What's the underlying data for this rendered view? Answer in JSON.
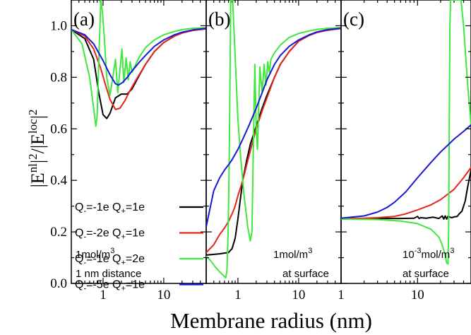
{
  "colors": {
    "black": "#000000",
    "red": "#e8231b",
    "green": "#3ee83c",
    "blue": "#1818d8"
  },
  "chart_data": {
    "type": "line",
    "y_title": "|E<sup>nl</sup>|<sup>2</sup>/|E<sup>loc</sup>|<sup>2</sup>",
    "y_title_parts": {
      "a": "|E",
      "sup1": "nl",
      "b": "|",
      "sup2": "2",
      "c": "/|E",
      "sup3": "loc",
      "d": "|",
      "sup4": "2"
    },
    "x_title": "Membrane radius (nm)",
    "ylim": [
      0.0,
      1.1
    ],
    "yticks": [
      "0.0",
      "0.2",
      "0.4",
      "0.6",
      "0.8",
      "1.0"
    ],
    "xscale": "log",
    "legend": {
      "placement": "panel (a), lower-left",
      "entries": [
        {
          "qm": "-1e",
          "qp": "1e",
          "color": "black"
        },
        {
          "qm": "-2e",
          "qp": "1e",
          "color": "red"
        },
        {
          "qm": "-1e",
          "qp": "2e",
          "color": "green"
        },
        {
          "qm": "-5e",
          "qp": "1e",
          "color": "blue"
        }
      ]
    },
    "panels": [
      {
        "label": "(a)",
        "xlim": [
          0.3,
          50
        ],
        "xticks": [
          "1",
          "10"
        ],
        "note_lines": [
          "1mol/m",
          "3",
          "1 nm distance"
        ],
        "series": {
          "black": {
            "x": [
              0.3,
              0.5,
              0.7,
              0.85,
              1.0,
              1.15,
              1.3,
              1.6,
              2.0,
              2.5,
              3.0,
              4,
              5,
              7,
              10,
              15,
              20,
              30,
              50
            ],
            "y": [
              0.985,
              0.95,
              0.87,
              0.74,
              0.655,
              0.64,
              0.66,
              0.72,
              0.735,
              0.735,
              0.755,
              0.81,
              0.85,
              0.9,
              0.935,
              0.96,
              0.972,
              0.982,
              0.988
            ]
          },
          "red": {
            "x": [
              0.3,
              0.5,
              0.7,
              0.9,
              1.1,
              1.3,
              1.6,
              1.9,
              2.3,
              2.8,
              3.5,
              5,
              7,
              10,
              15,
              20,
              30,
              50
            ],
            "y": [
              0.985,
              0.96,
              0.91,
              0.84,
              0.77,
              0.715,
              0.675,
              0.68,
              0.71,
              0.75,
              0.79,
              0.85,
              0.9,
              0.935,
              0.96,
              0.972,
              0.982,
              0.988
            ]
          },
          "green": {
            "x": [
              0.3,
              0.45,
              0.6,
              0.7,
              0.76,
              0.8,
              0.86,
              0.92,
              0.98,
              1.05,
              1.15,
              1.3,
              1.45,
              1.6,
              1.75,
              1.9,
              2.05,
              2.2,
              2.4,
              2.6,
              2.8,
              3.0,
              3.3,
              3.6,
              4,
              5,
              7,
              10,
              15,
              20,
              30,
              50
            ],
            "y": [
              0.985,
              0.93,
              0.8,
              0.68,
              0.61,
              0.65,
              0.9,
              1.1,
              1.05,
              0.95,
              0.8,
              0.73,
              0.8,
              0.87,
              0.74,
              0.83,
              0.91,
              0.78,
              0.875,
              0.79,
              0.86,
              0.82,
              0.84,
              0.86,
              0.88,
              0.915,
              0.945,
              0.965,
              0.978,
              0.985,
              0.99,
              0.992
            ]
          },
          "blue": {
            "x": [
              0.3,
              0.5,
              0.7,
              1.0,
              1.3,
              1.6,
              1.8,
              2.1,
              2.5,
              3.0,
              4,
              5,
              7,
              10,
              15,
              20,
              30,
              50
            ],
            "y": [
              0.985,
              0.965,
              0.93,
              0.865,
              0.81,
              0.775,
              0.77,
              0.78,
              0.8,
              0.825,
              0.86,
              0.885,
              0.92,
              0.945,
              0.965,
              0.975,
              0.984,
              0.99
            ]
          }
        }
      },
      {
        "label": "(b)",
        "xlim": [
          0.3,
          50
        ],
        "xticks": [
          "1",
          "10"
        ],
        "note_lines": [
          "1mol/m",
          "3",
          "at surface"
        ],
        "series": {
          "black": {
            "x": [
              0.3,
              0.5,
              0.7,
              0.8,
              0.9,
              1.0,
              1.1,
              1.2,
              1.4,
              1.6,
              2.0,
              2.5,
              3,
              4,
              5,
              7,
              10,
              15,
              20,
              30,
              50
            ],
            "y": [
              0.11,
              0.115,
              0.12,
              0.135,
              0.175,
              0.25,
              0.33,
              0.4,
              0.48,
              0.54,
              0.61,
              0.68,
              0.73,
              0.8,
              0.85,
              0.9,
              0.94,
              0.963,
              0.974,
              0.983,
              0.99
            ]
          },
          "red": {
            "x": [
              0.3,
              0.4,
              0.5,
              0.6,
              0.7,
              0.8,
              0.9,
              1.0,
              1.2,
              1.5,
              2.0,
              2.5,
              3,
              4,
              5,
              7,
              10,
              15,
              20,
              30,
              50
            ],
            "y": [
              0.12,
              0.15,
              0.19,
              0.215,
              0.24,
              0.27,
              0.3,
              0.34,
              0.4,
              0.49,
              0.6,
              0.67,
              0.72,
              0.8,
              0.85,
              0.9,
              0.94,
              0.963,
              0.974,
              0.983,
              0.99
            ]
          },
          "green": {
            "x": [
              0.3,
              0.35,
              0.42,
              0.5,
              0.58,
              0.63,
              0.66,
              0.69,
              0.72,
              0.76,
              0.82,
              0.9,
              1.0,
              1.1,
              1.25,
              1.45,
              1.6,
              1.7,
              1.8,
              1.9,
              2.0,
              2.1,
              2.3,
              2.5,
              2.7,
              2.9,
              3.1,
              3.3,
              3.5,
              4,
              5,
              7,
              10,
              15,
              20,
              30,
              50
            ],
            "y": [
              0.105,
              0.09,
              0.065,
              0.045,
              0.03,
              0.022,
              0.05,
              0.2,
              0.5,
              1.1,
              1.1,
              0.88,
              0.64,
              0.5,
              0.35,
              0.22,
              0.165,
              0.2,
              0.55,
              0.85,
              0.6,
              0.52,
              0.84,
              0.74,
              0.85,
              0.77,
              0.86,
              0.82,
              0.87,
              0.895,
              0.925,
              0.955,
              0.97,
              0.98,
              0.986,
              0.99,
              0.993
            ]
          },
          "blue": {
            "x": [
              0.3,
              0.4,
              0.5,
              0.6,
              0.7,
              0.8,
              1.0,
              1.2,
              1.5,
              2.0,
              2.5,
              3,
              4,
              5,
              7,
              10,
              15,
              20,
              30,
              50
            ],
            "y": [
              0.22,
              0.36,
              0.41,
              0.44,
              0.46,
              0.48,
              0.52,
              0.56,
              0.61,
              0.68,
              0.74,
              0.79,
              0.85,
              0.885,
              0.92,
              0.945,
              0.965,
              0.976,
              0.985,
              0.99
            ]
          }
        }
      },
      {
        "label": "(c)",
        "xlim": [
          1,
          50
        ],
        "xticks": [
          "1",
          "10"
        ],
        "note_lines": [
          "10",
          "-3",
          "mol/m",
          "3",
          "at surface"
        ],
        "series": {
          "black": {
            "x": [
              1,
              3,
              6,
              9,
              10,
              10.5,
              11,
              13,
              16,
              19,
              21,
              22,
              23,
              24,
              25,
              28,
              30,
              33,
              35,
              38,
              42,
              45,
              50
            ],
            "y": [
              0.252,
              0.252,
              0.252,
              0.253,
              0.26,
              0.252,
              0.255,
              0.253,
              0.257,
              0.252,
              0.262,
              0.25,
              0.262,
              0.25,
              0.26,
              0.255,
              0.258,
              0.26,
              0.27,
              0.28,
              0.32,
              0.37,
              0.44
            ]
          },
          "red": {
            "x": [
              1,
              2,
              3,
              5,
              7,
              10,
              15,
              20,
              30,
              40,
              50
            ],
            "y": [
              0.252,
              0.253,
              0.255,
              0.26,
              0.27,
              0.285,
              0.305,
              0.325,
              0.365,
              0.41,
              0.45
            ]
          },
          "blue": {
            "x": [
              1,
              2,
              3,
              4,
              5,
              7,
              10,
              15,
              20,
              30,
              40,
              50
            ],
            "y": [
              0.253,
              0.262,
              0.277,
              0.295,
              0.315,
              0.355,
              0.41,
              0.47,
              0.51,
              0.56,
              0.59,
              0.615
            ]
          },
          "green": {
            "x": [
              1,
              3,
              6,
              10,
              15,
              19,
              21,
              23,
              24,
              25,
              25.5,
              26,
              26.5,
              27,
              28,
              30,
              33,
              37,
              40,
              45,
              50
            ],
            "y": [
              0.25,
              0.248,
              0.242,
              0.232,
              0.21,
              0.18,
              0.15,
              0.11,
              0.08,
              0.075,
              0.2,
              0.6,
              1.0,
              1.1,
              1.1,
              1.1,
              1.1,
              1.1,
              1.0,
              0.78,
              0.62
            ]
          }
        }
      }
    ]
  }
}
